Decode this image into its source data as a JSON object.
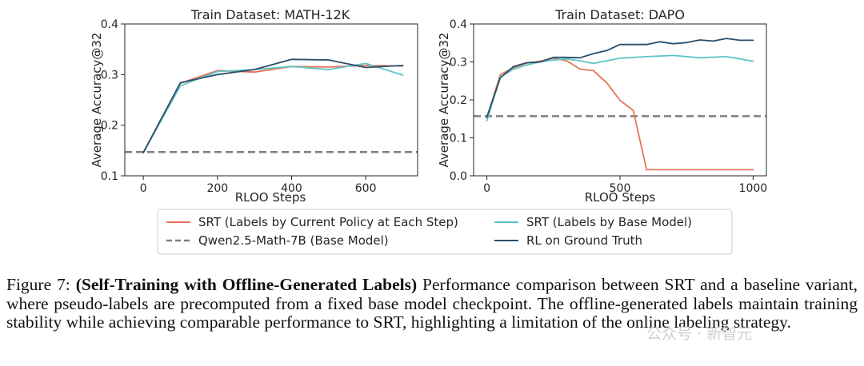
{
  "figure": {
    "caption_label": "Figure 7:",
    "caption_title": "(Self-Training with Offline-Generated Labels)",
    "caption_body": " Performance comparison between SRT and a baseline variant, where pseudo-labels are precomputed from a fixed base model checkpoint.  The offline-generated labels maintain training stability while achieving comparable performance to SRT, highlighting a limitation of the online labeling strategy.",
    "watermark": "公众号 · 新智元"
  },
  "legend": [
    {
      "label": "SRT (Labels by Current Policy at Each Step)",
      "color": "#e8735a",
      "dash": false
    },
    {
      "label": "SRT (Labels by Base Model)",
      "color": "#5ec4c8",
      "dash": false
    },
    {
      "label": "Qwen2.5-Math-7B (Base Model)",
      "color": "#7f7f7f",
      "dash": true
    },
    {
      "label": "RL on Ground Truth",
      "color": "#284e6b",
      "dash": false
    }
  ],
  "chart_data": [
    {
      "type": "line",
      "title": "Train Dataset: MATH-12K",
      "xlabel": "RLOO Steps",
      "ylabel": "Average Accuracy@32",
      "xlim": [
        -50,
        740
      ],
      "ylim": [
        0.1,
        0.4
      ],
      "xticks": [
        0,
        200,
        400,
        600
      ],
      "yticks": [
        0.1,
        0.2,
        0.3,
        0.4
      ],
      "ytick_labels": [
        "0.1",
        "0.2",
        "0.3",
        "0.4"
      ],
      "baseline": 0.147,
      "series": [
        {
          "name": "SRT (Labels by Current Policy at Each Step)",
          "color": "#e8735a",
          "x": [
            0,
            100,
            200,
            300,
            400,
            500,
            600,
            700
          ],
          "y": [
            0.146,
            0.283,
            0.308,
            0.305,
            0.316,
            0.315,
            0.318,
            0.317
          ]
        },
        {
          "name": "SRT (Labels by Base Model)",
          "color": "#5ec4c8",
          "x": [
            0,
            100,
            200,
            300,
            400,
            500,
            600,
            700
          ],
          "y": [
            0.146,
            0.278,
            0.306,
            0.31,
            0.316,
            0.31,
            0.322,
            0.299
          ]
        },
        {
          "name": "RL on Ground Truth",
          "color": "#284e6b",
          "x": [
            0,
            100,
            200,
            300,
            400,
            500,
            600,
            700
          ],
          "y": [
            0.146,
            0.284,
            0.3,
            0.31,
            0.33,
            0.329,
            0.314,
            0.318
          ]
        }
      ]
    },
    {
      "type": "line",
      "title": "Train Dataset: DAPO",
      "xlabel": "RLOO Steps",
      "ylabel": "Average Accuracy@32",
      "xlim": [
        -50,
        1050
      ],
      "ylim": [
        0.0,
        0.4
      ],
      "xticks": [
        0,
        500,
        1000
      ],
      "yticks": [
        0.0,
        0.1,
        0.2,
        0.3,
        0.4
      ],
      "ytick_labels": [
        "0.0",
        "0.1",
        "0.2",
        "0.3",
        "0.4"
      ],
      "baseline": 0.157,
      "series": [
        {
          "name": "SRT (Labels by Current Policy at Each Step)",
          "color": "#e8735a",
          "x": [
            0,
            50,
            100,
            150,
            200,
            250,
            300,
            350,
            400,
            450,
            500,
            550,
            600,
            650,
            700,
            750,
            800,
            850,
            900,
            950,
            1000
          ],
          "y": [
            0.152,
            0.266,
            0.285,
            0.297,
            0.302,
            0.31,
            0.303,
            0.281,
            0.277,
            0.245,
            0.199,
            0.172,
            0.016,
            0.016,
            0.016,
            0.016,
            0.016,
            0.016,
            0.016,
            0.016,
            0.016
          ]
        },
        {
          "name": "SRT (Labels by Base Model)",
          "color": "#5ec4c8",
          "x": [
            0,
            50,
            100,
            150,
            200,
            250,
            300,
            350,
            400,
            500,
            600,
            700,
            800,
            900,
            1000
          ],
          "y": [
            0.145,
            0.26,
            0.281,
            0.292,
            0.3,
            0.305,
            0.308,
            0.303,
            0.296,
            0.31,
            0.314,
            0.317,
            0.311,
            0.314,
            0.302
          ]
        },
        {
          "name": "RL on Ground Truth",
          "color": "#284e6b",
          "x": [
            0,
            50,
            100,
            150,
            200,
            250,
            300,
            350,
            400,
            450,
            500,
            550,
            600,
            650,
            700,
            750,
            800,
            850,
            900,
            950,
            1000
          ],
          "y": [
            0.155,
            0.258,
            0.288,
            0.298,
            0.3,
            0.312,
            0.312,
            0.311,
            0.322,
            0.33,
            0.346,
            0.346,
            0.346,
            0.353,
            0.348,
            0.351,
            0.358,
            0.355,
            0.362,
            0.357,
            0.357
          ]
        }
      ]
    }
  ]
}
